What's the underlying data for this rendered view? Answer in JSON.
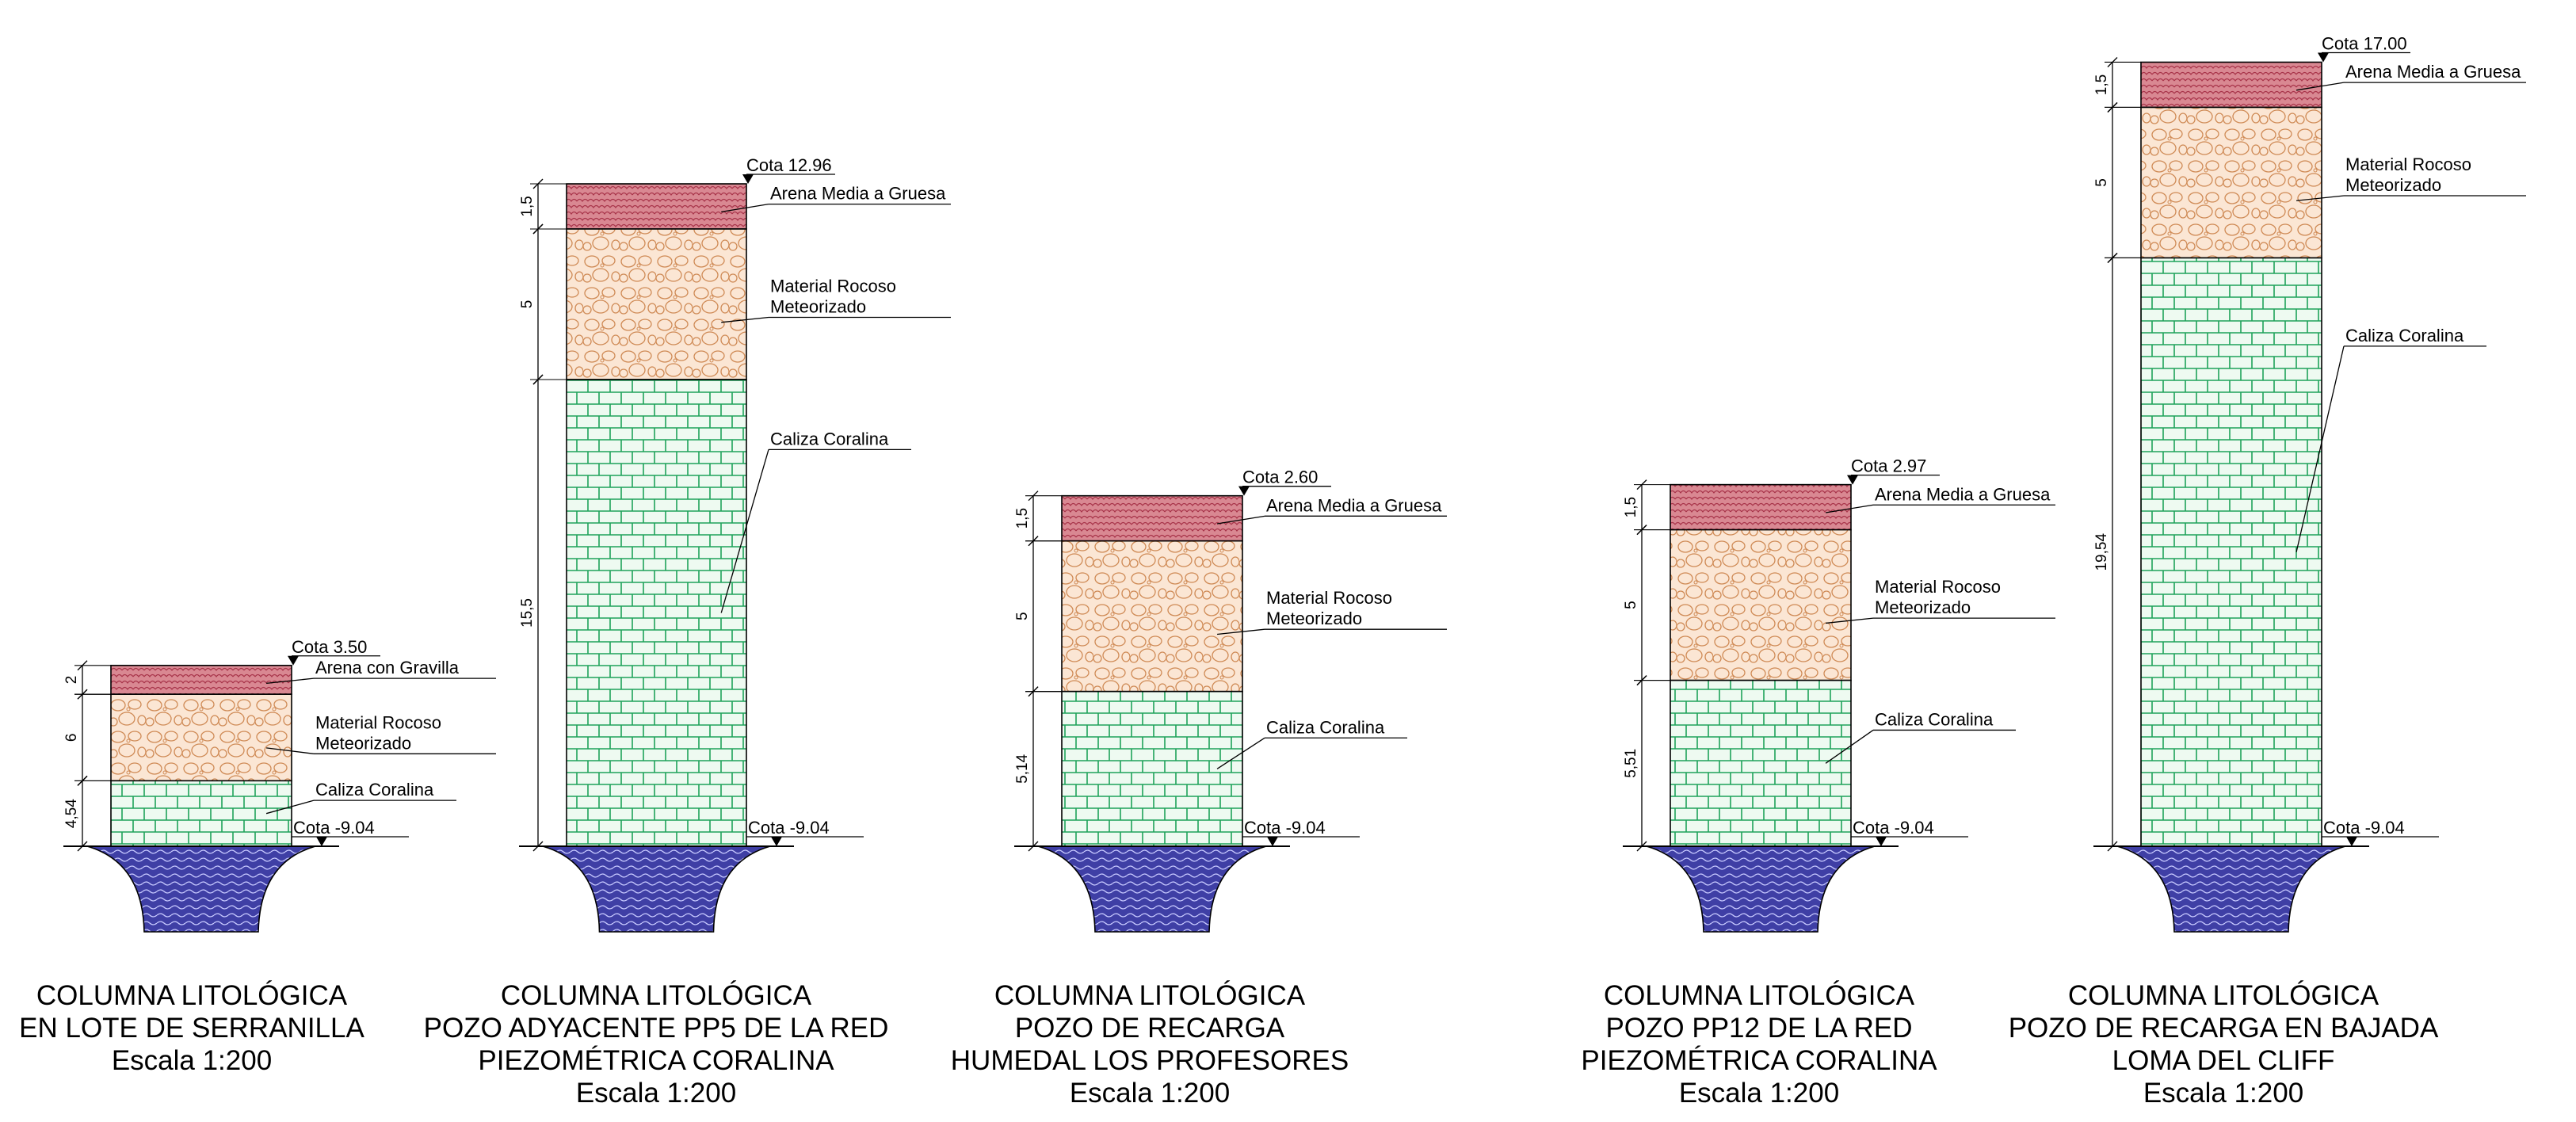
{
  "scale_text": "Escala 1:200",
  "caption_line1": "COLUMNA LITOLÓGICA",
  "colors": {
    "arena": "#d98892",
    "arena_stroke": "#b03a4a",
    "material": "#fbe6d4",
    "material_stroke": "#cf8a55",
    "caliza": "#eefaf1",
    "caliza_stroke": "#1fa35a",
    "water": "#3f3fa5"
  },
  "columns": [
    {
      "caption": [
        "COLUMNA LITOLÓGICA",
        "EN LOTE DE SERRANILLA",
        "Escala 1:200"
      ],
      "top_label": "Cota 3.50",
      "bottom_label": "Cota -9.04",
      "layers": [
        {
          "type": "arena",
          "name": "Arena con Gravilla",
          "thickness_label": "2",
          "thickness": 2
        },
        {
          "type": "material",
          "name": [
            "Material Rocoso",
            "Meteorizado"
          ],
          "thickness_label": "6",
          "thickness": 6
        },
        {
          "type": "caliza",
          "name": "Caliza Coralina",
          "thickness_label": "4,54",
          "thickness": 4.54
        }
      ]
    },
    {
      "caption": [
        "COLUMNA LITOLÓGICA",
        "POZO ADYACENTE PP5 DE LA RED",
        "PIEZOMÉTRICA CORALINA",
        "Escala 1:200"
      ],
      "top_label": "Cota 12.96",
      "bottom_label": "Cota -9.04",
      "layers": [
        {
          "type": "arena",
          "name": "Arena Media a Gruesa",
          "thickness_label": "1,5",
          "thickness": 1.5
        },
        {
          "type": "material",
          "name": [
            "Material Rocoso",
            "Meteorizado"
          ],
          "thickness_label": "5",
          "thickness": 5
        },
        {
          "type": "caliza",
          "name": "Caliza Coralina",
          "thickness_label": "15,5",
          "thickness": 15.5
        }
      ]
    },
    {
      "caption": [
        "COLUMNA LITOLÓGICA",
        "POZO DE RECARGA",
        "HUMEDAL LOS PROFESORES",
        "Escala 1:200"
      ],
      "top_label": "Cota 2.60",
      "bottom_label": "Cota -9.04",
      "layers": [
        {
          "type": "arena",
          "name": "Arena Media a Gruesa",
          "thickness_label": "1,5",
          "thickness": 1.5
        },
        {
          "type": "material",
          "name": [
            "Material Rocoso",
            "Meteorizado"
          ],
          "thickness_label": "5",
          "thickness": 5
        },
        {
          "type": "caliza",
          "name": "Caliza Coralina",
          "thickness_label": "5,14",
          "thickness": 5.14
        }
      ]
    },
    {
      "caption": [
        "COLUMNA LITOLÓGICA",
        "POZO PP12 DE LA RED",
        "PIEZOMÉTRICA CORALINA",
        "Escala 1:200"
      ],
      "top_label": "Cota 2.97",
      "bottom_label": "Cota -9.04",
      "layers": [
        {
          "type": "arena",
          "name": "Arena Media a Gruesa",
          "thickness_label": "1,5",
          "thickness": 1.5
        },
        {
          "type": "material",
          "name": [
            "Material Rocoso",
            "Meteorizado"
          ],
          "thickness_label": "5",
          "thickness": 5
        },
        {
          "type": "caliza",
          "name": "Caliza Coralina",
          "thickness_label": "5,51",
          "thickness": 5.51
        }
      ]
    },
    {
      "caption": [
        "COLUMNA LITOLÓGICA",
        "POZO DE RECARGA EN BAJADA",
        "LOMA DEL CLIFF",
        "Escala 1:200"
      ],
      "top_label": "Cota 17.00",
      "bottom_label": "Cota -9.04",
      "layers": [
        {
          "type": "arena",
          "name": "Arena Media a Gruesa",
          "thickness_label": "1,5",
          "thickness": 1.5
        },
        {
          "type": "material",
          "name": [
            "Material Rocoso",
            "Meteorizado"
          ],
          "thickness_label": "5",
          "thickness": 5
        },
        {
          "type": "caliza",
          "name": "Caliza Coralina",
          "thickness_label": "19,54",
          "thickness": 19.54
        }
      ]
    }
  ]
}
